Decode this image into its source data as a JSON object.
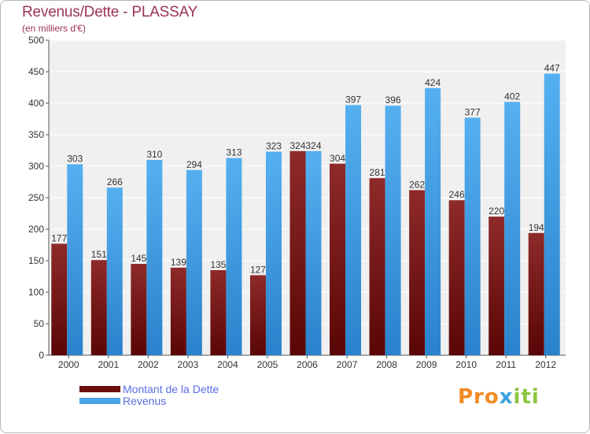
{
  "header": {
    "title": "Revenus/Dette - PLASSAY",
    "subtitle": "(en milliers d'€)"
  },
  "chart_data": {
    "type": "bar",
    "title": "Revenus/Dette - PLASSAY",
    "ylabel": "(en milliers d'€)",
    "xlabel": "",
    "ylim": [
      0,
      500
    ],
    "yticks": [
      0,
      50,
      100,
      150,
      200,
      250,
      300,
      350,
      400,
      450,
      500
    ],
    "grid": true,
    "categories": [
      "2000",
      "2001",
      "2002",
      "2003",
      "2004",
      "2005",
      "2006",
      "2007",
      "2008",
      "2009",
      "2010",
      "2011",
      "2012"
    ],
    "series": [
      {
        "name": "Montant de la Dette",
        "color": "#7a1a1a",
        "values": [
          177,
          151,
          145,
          139,
          135,
          127,
          324,
          304,
          281,
          262,
          246,
          220,
          194
        ]
      },
      {
        "name": "Revenus",
        "color": "#4aa3e6",
        "values": [
          303,
          266,
          310,
          294,
          313,
          323,
          324,
          397,
          396,
          424,
          377,
          402,
          447
        ]
      }
    ],
    "legend_position": "bottom-left"
  },
  "legend": {
    "items": [
      {
        "label": "Montant de la Dette",
        "color": "#6b0f0f"
      },
      {
        "label": "Revenus",
        "color": "#4aa3e6"
      }
    ]
  },
  "logo": {
    "part1": "Pro",
    "part2": "x",
    "part3": "iti"
  }
}
